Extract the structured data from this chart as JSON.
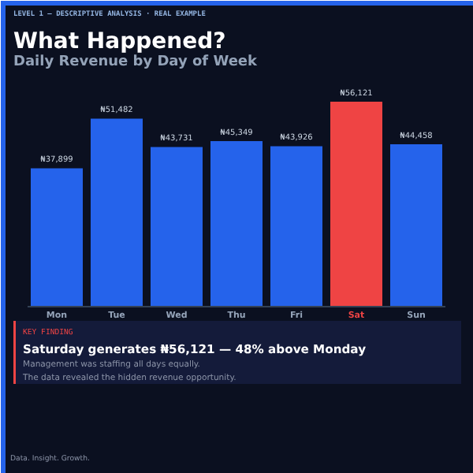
{
  "chart_data": {
    "type": "bar",
    "title": "What Happened?",
    "subtitle": "Daily Revenue by Day of Week",
    "categories": [
      "Mon",
      "Tue",
      "Wed",
      "Thu",
      "Fri",
      "Sat",
      "Sun"
    ],
    "values": [
      37899,
      51482,
      43731,
      45349,
      43926,
      56121,
      44458
    ],
    "color": "#2563eb",
    "colors": [
      "#2563eb",
      "#2563eb",
      "#2563eb",
      "#2563eb",
      "#2563eb",
      "#ef4444",
      "#2563eb"
    ],
    "value_labels": [
      "₦37,899",
      "₦51,482",
      "₦43,731",
      "₦45,349",
      "₦43,926",
      "₦56,121",
      "₦44,458"
    ],
    "annotations": [
      "LEVEL 1 — DESCRIPTIVE ANALYSIS  ·  REAL EXAMPLE",
      "KEY FINDING",
      "Saturday generates ₦56,121 — 48% above Monday",
      "Management was staffing all days equally.",
      "The data revealed the hidden revenue opportunity.",
      "Data. Insight. Growth."
    ]
  }
}
